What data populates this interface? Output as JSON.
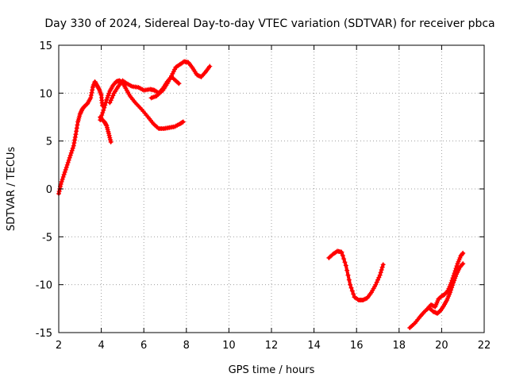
{
  "chart_data": {
    "type": "scatter",
    "title": "Day 330 of 2024, Sidereal Day-to-day VTEC variation (SDTVAR) for receiver pbca",
    "xlabel": "GPS time / hours",
    "ylabel": "SDTVAR / TECUs",
    "xlim": [
      2,
      22
    ],
    "ylim": [
      -15,
      15
    ],
    "xticks": [
      2,
      4,
      6,
      8,
      10,
      12,
      14,
      16,
      18,
      20,
      22
    ],
    "yticks": [
      -15,
      -10,
      -5,
      0,
      5,
      10,
      15
    ],
    "xtick_labels": [
      "2",
      "4",
      "6",
      "8",
      "10",
      "12",
      "14",
      "16",
      "18",
      "20",
      "22"
    ],
    "ytick_labels": [
      "-15",
      "-10",
      "-5",
      "0",
      "5",
      "10",
      "15"
    ],
    "grid": true,
    "marker": "plus",
    "color": "#ff0000",
    "series": [
      {
        "name": "arc-1",
        "x": [
          2.0,
          2.1,
          2.25,
          2.4,
          2.55,
          2.7,
          2.8,
          2.9,
          3.0,
          3.1,
          3.2,
          3.35,
          3.5,
          3.6,
          3.7,
          3.8,
          3.9,
          4.0,
          4.05
        ],
        "y": [
          -0.5,
          0.5,
          1.5,
          2.5,
          3.5,
          4.5,
          5.7,
          7.0,
          7.8,
          8.3,
          8.6,
          8.9,
          9.5,
          10.6,
          11.2,
          10.8,
          10.4,
          9.8,
          8.7
        ]
      },
      {
        "name": "arc-2",
        "x": [
          3.95,
          4.05,
          4.15,
          4.25,
          4.35,
          4.45
        ],
        "y": [
          7.5,
          7.2,
          7.0,
          6.6,
          5.8,
          4.9
        ]
      },
      {
        "name": "arc-3",
        "x": [
          3.95,
          4.1,
          4.25,
          4.4,
          4.55,
          4.7,
          4.85,
          5.0,
          5.15,
          5.35,
          5.6,
          5.9,
          6.2,
          6.45,
          6.7,
          6.95,
          7.2,
          7.45,
          7.7,
          7.85
        ],
        "y": [
          7.2,
          8.2,
          9.3,
          10.2,
          10.8,
          11.2,
          11.3,
          11.1,
          10.5,
          9.7,
          9.0,
          8.3,
          7.5,
          6.8,
          6.3,
          6.3,
          6.4,
          6.5,
          6.8,
          7.0
        ]
      },
      {
        "name": "arc-4",
        "x": [
          4.4,
          4.6,
          4.8,
          5.0,
          5.2,
          5.45,
          5.75,
          6.0,
          6.3,
          6.5,
          6.7,
          6.9,
          7.1,
          7.3,
          7.5,
          7.65
        ],
        "y": [
          9.0,
          10.0,
          10.7,
          11.3,
          11.0,
          10.7,
          10.6,
          10.3,
          10.4,
          10.3,
          10.0,
          10.5,
          11.2,
          11.7,
          11.3,
          11.0
        ]
      },
      {
        "name": "arc-5",
        "x": [
          6.35,
          6.6,
          6.9,
          7.1,
          7.3,
          7.5,
          7.7,
          7.9,
          8.1,
          8.3,
          8.5,
          8.7,
          8.9,
          9.1
        ],
        "y": [
          9.5,
          9.7,
          10.3,
          11.0,
          11.8,
          12.7,
          13.0,
          13.3,
          13.2,
          12.6,
          11.9,
          11.7,
          12.2,
          12.8
        ]
      },
      {
        "name": "arc-6",
        "x": [
          14.7,
          14.9,
          15.1,
          15.3,
          15.5,
          15.7,
          15.9,
          16.1,
          16.3,
          16.5,
          16.7,
          16.9,
          17.1,
          17.25
        ],
        "y": [
          -7.2,
          -6.8,
          -6.5,
          -6.6,
          -8.0,
          -10.0,
          -11.3,
          -11.6,
          -11.6,
          -11.4,
          -10.8,
          -10.0,
          -9.0,
          -7.9
        ]
      },
      {
        "name": "arc-7",
        "x": [
          18.5,
          18.75,
          19.0,
          19.2,
          19.4,
          19.6,
          19.8,
          19.95,
          20.1,
          20.25,
          20.4,
          20.55,
          20.7,
          20.85,
          21.0
        ],
        "y": [
          -14.5,
          -14.0,
          -13.3,
          -12.8,
          -12.4,
          -12.8,
          -13.0,
          -12.7,
          -12.2,
          -11.6,
          -10.8,
          -9.8,
          -8.9,
          -8.2,
          -7.8
        ]
      },
      {
        "name": "arc-8",
        "x": [
          19.3,
          19.5,
          19.7,
          19.85,
          20.0,
          20.15,
          20.3,
          20.45,
          20.6,
          20.75,
          20.9,
          21.0
        ],
        "y": [
          -12.6,
          -12.1,
          -12.3,
          -11.5,
          -11.2,
          -11.0,
          -10.6,
          -9.8,
          -8.8,
          -7.8,
          -7.0,
          -6.7
        ]
      }
    ]
  }
}
